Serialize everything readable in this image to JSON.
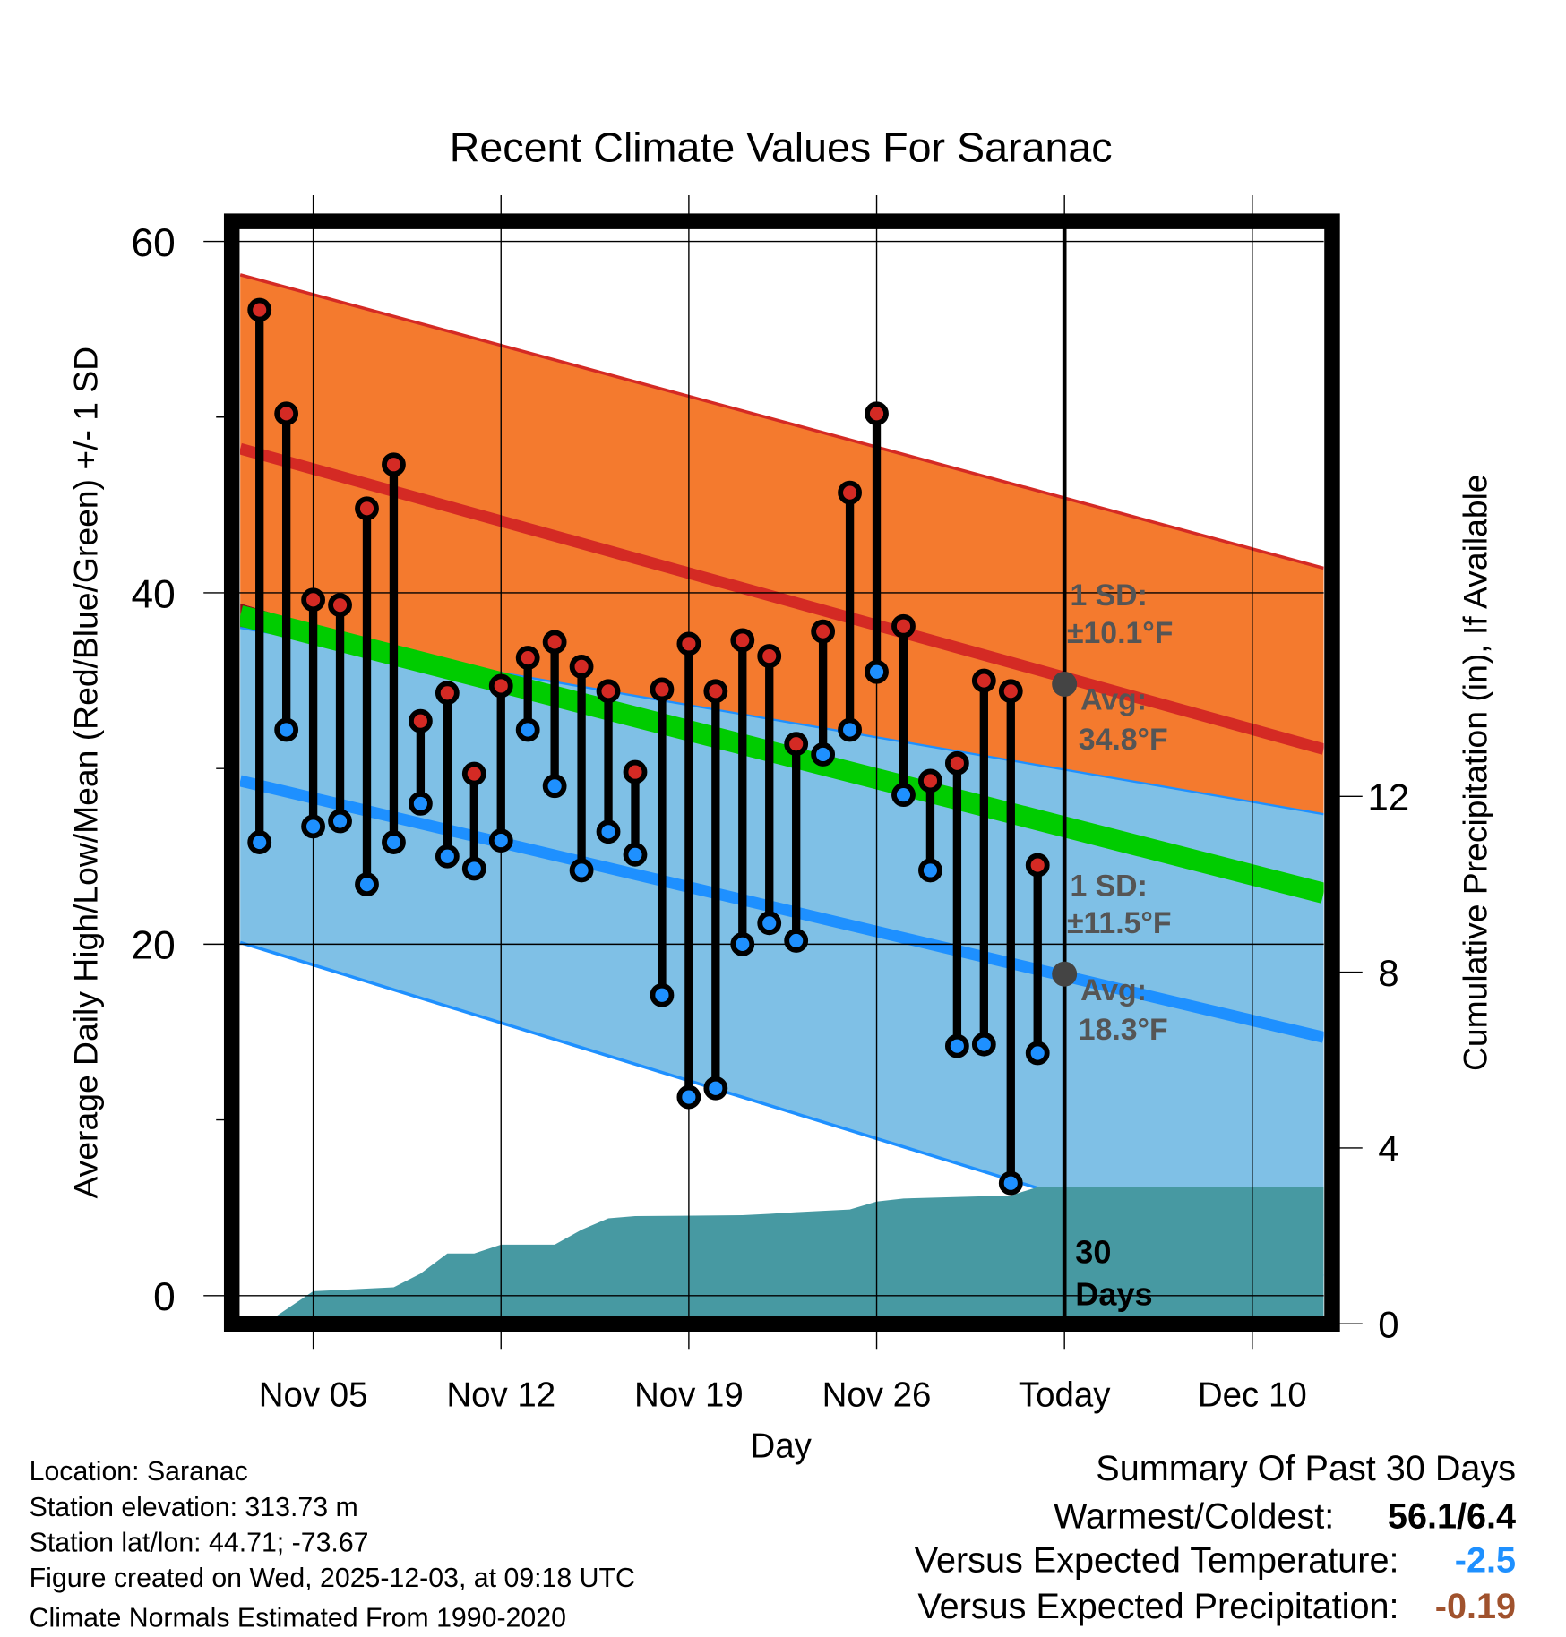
{
  "chart_data": {
    "type": "line",
    "title": "Recent Climate Values For Saranac",
    "xlabel": "Day",
    "ylabel": "Average Daily High/Low/Mean (Red/Blue/Green) +/- 1 SD",
    "y2label": "Cumulative Precipitation (in), If Available",
    "ylim": [
      -3.6,
      61.1
    ],
    "y2lim": [
      0,
      28
    ],
    "xlim_day_of_nov": [
      2.28,
      42.66
    ],
    "grid": true,
    "x_ticks": [
      {
        "day": 5,
        "label": "Nov 05"
      },
      {
        "day": 12,
        "label": "Nov 12"
      },
      {
        "day": 19,
        "label": "Nov 19"
      },
      {
        "day": 26,
        "label": "Nov 26"
      },
      {
        "day": 33,
        "label": "Today"
      },
      {
        "day": 40,
        "label": "Dec 10"
      }
    ],
    "y_ticks": [
      0,
      20,
      40,
      60
    ],
    "y_minor_ticks": [
      10,
      30,
      50
    ],
    "y2_ticks": [
      0,
      4,
      8,
      12
    ],
    "today_day": 33,
    "days": [
      3,
      4,
      5,
      6,
      7,
      8,
      9,
      10,
      11,
      12,
      13,
      14,
      15,
      16,
      17,
      18,
      19,
      20,
      21,
      22,
      23,
      24,
      25,
      26,
      27,
      28,
      29,
      30,
      31,
      32
    ],
    "highs": [
      56.1,
      50.2,
      39.6,
      39.3,
      44.8,
      47.3,
      32.7,
      34.3,
      29.7,
      34.7,
      36.3,
      37.2,
      35.8,
      34.4,
      29.8,
      34.5,
      37.1,
      34.4,
      37.3,
      36.4,
      31.4,
      37.8,
      45.7,
      50.2,
      38.1,
      29.3,
      30.3,
      35.0,
      34.4,
      24.5
    ],
    "lows": [
      25.8,
      32.2,
      26.7,
      27.0,
      23.4,
      25.8,
      28.0,
      25.0,
      24.3,
      25.9,
      32.2,
      29.0,
      24.2,
      26.4,
      25.1,
      17.1,
      11.3,
      11.8,
      20.0,
      21.2,
      20.2,
      30.8,
      32.2,
      35.5,
      28.5,
      24.2,
      14.2,
      14.3,
      6.4,
      13.8
    ],
    "normals": {
      "days": [
        2.28,
        42.66
      ],
      "high_plus_sd": [
        58.1,
        41.4
      ],
      "avg_high": [
        48.2,
        31.1
      ],
      "high_minus_sd": [
        39.4,
        20.8
      ],
      "mean": [
        38.7,
        22.9
      ],
      "low_plus_sd": [
        38.0,
        27.4
      ],
      "avg_low": [
        29.3,
        14.7
      ],
      "low_minus_sd": [
        20.1,
        1.1
      ]
    },
    "precip": {
      "days": [
        3.2,
        5,
        8,
        9,
        10,
        11,
        12,
        14,
        15,
        16,
        17,
        21,
        22,
        23,
        25,
        26,
        27,
        31,
        32,
        42.66
      ],
      "cumulative": [
        0,
        0.74,
        0.83,
        1.14,
        1.6,
        1.6,
        1.8,
        1.8,
        2.14,
        2.4,
        2.45,
        2.47,
        2.5,
        2.54,
        2.6,
        2.78,
        2.85,
        2.92,
        3.11,
        3.11
      ]
    },
    "annotations": {
      "high_sd_label": "1 SD:",
      "high_sd_value": "±10.1°F",
      "high_avg_label": "Avg:",
      "high_avg_value": "34.8°F",
      "high_avg": 34.8,
      "low_sd_label": "1 SD:",
      "low_sd_value": "±11.5°F",
      "low_avg_label": "Avg:",
      "low_avg_value": "18.3°F",
      "low_avg": 18.3,
      "period_line1": "30",
      "period_line2": "Days"
    },
    "colors": {
      "orange": "#f47a2e",
      "red": "#d42a24",
      "darkred": "#930d13",
      "green": "#00cc00",
      "lightblue": "#7fc0e6",
      "blue": "#1e90ff",
      "teal": "#4799a2"
    }
  },
  "footer": {
    "location": "Location: Saranac",
    "elevation": "Station elevation: 313.73 m",
    "latlon": "Station lat/lon: 44.71; -73.67",
    "created": "Figure created on Wed, 2025-12-03, at 09:18 UTC",
    "normals": "Climate Normals Estimated From 1990-2020"
  },
  "summary": {
    "title": "Summary Of Past 30 Days",
    "warmest_label": "Warmest/Coldest:",
    "warmest_value": "56.1/6.4",
    "temp_label": "Versus Expected Temperature:",
    "temp_value": "-2.5",
    "temp_color": "#1e90ff",
    "precip_label": "Versus Expected Precipitation:",
    "precip_value": "-0.19",
    "precip_color": "#a0522d"
  }
}
